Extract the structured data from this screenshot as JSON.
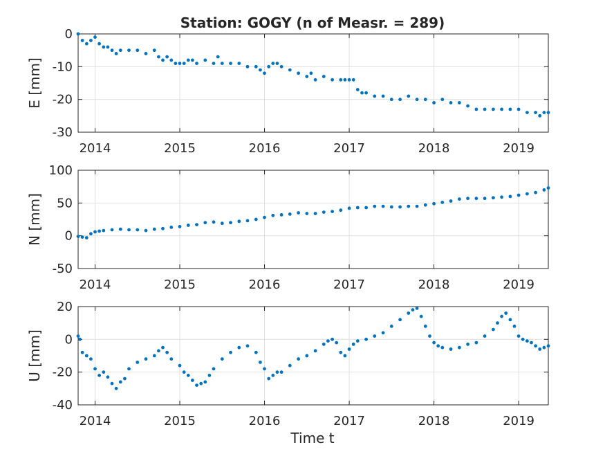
{
  "title": "Station: GOGY (n of Measr. = 289)",
  "xlabel": "Time t",
  "colors": {
    "series": "#0072BD",
    "grid": "#dfdfdf",
    "axis": "#262626"
  },
  "chart_data": [
    {
      "type": "scatter",
      "ylabel": "E [mm]",
      "xlim": [
        2013.8,
        2019.35
      ],
      "ylim": [
        -30,
        0
      ],
      "xticks": [
        2014,
        2015,
        2016,
        2017,
        2018,
        2019
      ],
      "yticks": [
        -30,
        -20,
        -10,
        0
      ],
      "grid": true,
      "series": [
        {
          "x": [
            2013.8,
            2013.85,
            2013.9,
            2013.95,
            2014.0,
            2014.05,
            2014.1,
            2014.15,
            2014.2,
            2014.25,
            2014.3,
            2014.4,
            2014.5,
            2014.6,
            2014.7,
            2014.75,
            2014.8,
            2014.85,
            2014.9,
            2014.95,
            2015.0,
            2015.05,
            2015.1,
            2015.15,
            2015.2,
            2015.3,
            2015.4,
            2015.45,
            2015.5,
            2015.6,
            2015.7,
            2015.8,
            2015.9,
            2015.95,
            2016.0,
            2016.05,
            2016.1,
            2016.15,
            2016.2,
            2016.3,
            2016.4,
            2016.5,
            2016.55,
            2016.6,
            2016.7,
            2016.8,
            2016.9,
            2016.95,
            2017.0,
            2017.05,
            2017.1,
            2017.15,
            2017.2,
            2017.3,
            2017.4,
            2017.5,
            2017.6,
            2017.7,
            2017.8,
            2017.9,
            2018.0,
            2018.1,
            2018.2,
            2018.3,
            2018.4,
            2018.5,
            2018.6,
            2018.7,
            2018.8,
            2018.9,
            2019.0,
            2019.1,
            2019.2,
            2019.25,
            2019.3,
            2019.35
          ],
          "y": [
            0,
            -2,
            -3,
            -2,
            -1,
            -3,
            -4,
            -4,
            -5,
            -6,
            -5,
            -5,
            -5,
            -6,
            -5,
            -7,
            -8,
            -7,
            -8,
            -9,
            -9,
            -9,
            -8,
            -8,
            -9,
            -8,
            -9,
            -7,
            -9,
            -9,
            -9,
            -10,
            -10,
            -11,
            -12,
            -10,
            -9,
            -9,
            -10,
            -11,
            -12,
            -13,
            -12,
            -14,
            -13,
            -14,
            -14,
            -14,
            -14,
            -14,
            -17,
            -18,
            -18,
            -19,
            -19,
            -20,
            -20,
            -19,
            -20,
            -20,
            -21,
            -20,
            -21,
            -21,
            -22,
            -23,
            -23,
            -23,
            -23,
            -23,
            -23,
            -24,
            -24,
            -25,
            -24,
            -24
          ],
          "color": "#0072BD"
        }
      ]
    },
    {
      "type": "scatter",
      "ylabel": "N [mm]",
      "xlim": [
        2013.8,
        2019.35
      ],
      "ylim": [
        -50,
        100
      ],
      "xticks": [
        2014,
        2015,
        2016,
        2017,
        2018,
        2019
      ],
      "yticks": [
        -50,
        0,
        50,
        100
      ],
      "grid": true,
      "series": [
        {
          "x": [
            2013.8,
            2013.85,
            2013.9,
            2013.95,
            2014.0,
            2014.05,
            2014.1,
            2014.2,
            2014.3,
            2014.4,
            2014.5,
            2014.6,
            2014.7,
            2014.8,
            2014.9,
            2015.0,
            2015.1,
            2015.2,
            2015.3,
            2015.4,
            2015.5,
            2015.6,
            2015.7,
            2015.8,
            2015.9,
            2016.0,
            2016.1,
            2016.2,
            2016.3,
            2016.4,
            2016.5,
            2016.6,
            2016.7,
            2016.8,
            2016.9,
            2017.0,
            2017.1,
            2017.2,
            2017.3,
            2017.4,
            2017.5,
            2017.6,
            2017.7,
            2017.8,
            2017.9,
            2018.0,
            2018.1,
            2018.2,
            2018.3,
            2018.4,
            2018.5,
            2018.6,
            2018.7,
            2018.8,
            2018.9,
            2019.0,
            2019.1,
            2019.2,
            2019.3,
            2019.35
          ],
          "y": [
            -1,
            -2,
            -3,
            3,
            6,
            7,
            8,
            9,
            10,
            9,
            9,
            8,
            10,
            11,
            13,
            14,
            16,
            17,
            20,
            21,
            19,
            20,
            22,
            23,
            25,
            28,
            31,
            32,
            33,
            35,
            34,
            34,
            36,
            37,
            39,
            42,
            43,
            43,
            45,
            45,
            44,
            44,
            45,
            45,
            47,
            49,
            51,
            53,
            56,
            57,
            57,
            57,
            58,
            59,
            60,
            62,
            64,
            66,
            70,
            73
          ],
          "color": "#0072BD"
        }
      ]
    },
    {
      "type": "scatter",
      "ylabel": "U [mm]",
      "xlim": [
        2013.8,
        2019.35
      ],
      "ylim": [
        -40,
        20
      ],
      "xticks": [
        2014,
        2015,
        2016,
        2017,
        2018,
        2019
      ],
      "yticks": [
        -40,
        -20,
        0,
        20
      ],
      "grid": true,
      "series": [
        {
          "x": [
            2013.8,
            2013.82,
            2013.85,
            2013.9,
            2013.95,
            2014.0,
            2014.05,
            2014.1,
            2014.15,
            2014.2,
            2014.25,
            2014.3,
            2014.35,
            2014.4,
            2014.5,
            2014.6,
            2014.7,
            2014.75,
            2014.8,
            2014.85,
            2014.9,
            2015.0,
            2015.05,
            2015.1,
            2015.15,
            2015.2,
            2015.25,
            2015.3,
            2015.35,
            2015.4,
            2015.5,
            2015.6,
            2015.7,
            2015.8,
            2015.9,
            2015.95,
            2016.0,
            2016.05,
            2016.1,
            2016.15,
            2016.2,
            2016.3,
            2016.4,
            2016.5,
            2016.6,
            2016.7,
            2016.75,
            2016.8,
            2016.85,
            2016.9,
            2016.95,
            2017.0,
            2017.05,
            2017.1,
            2017.2,
            2017.3,
            2017.4,
            2017.5,
            2017.6,
            2017.7,
            2017.75,
            2017.8,
            2017.85,
            2017.9,
            2017.95,
            2018.0,
            2018.05,
            2018.1,
            2018.2,
            2018.3,
            2018.4,
            2018.5,
            2018.6,
            2018.7,
            2018.75,
            2018.8,
            2018.85,
            2018.9,
            2018.95,
            2019.0,
            2019.05,
            2019.1,
            2019.15,
            2019.2,
            2019.25,
            2019.3,
            2019.35
          ],
          "y": [
            2,
            0,
            -8,
            -10,
            -12,
            -18,
            -22,
            -20,
            -23,
            -27,
            -30,
            -26,
            -24,
            -18,
            -14,
            -12,
            -10,
            -7,
            -5,
            -8,
            -12,
            -16,
            -20,
            -22,
            -25,
            -28,
            -27,
            -26,
            -22,
            -18,
            -12,
            -8,
            -5,
            -4,
            -8,
            -14,
            -18,
            -24,
            -22,
            -20,
            -20,
            -16,
            -12,
            -10,
            -7,
            -3,
            -1,
            0,
            -2,
            -8,
            -10,
            -6,
            -3,
            -1,
            0,
            2,
            4,
            8,
            12,
            16,
            18,
            19,
            14,
            8,
            2,
            -2,
            -4,
            -5,
            -6,
            -5,
            -3,
            -2,
            2,
            6,
            10,
            14,
            16,
            12,
            8,
            2,
            0,
            -1,
            -2,
            -4,
            -6,
            -5,
            -4
          ],
          "color": "#0072BD"
        }
      ]
    }
  ]
}
